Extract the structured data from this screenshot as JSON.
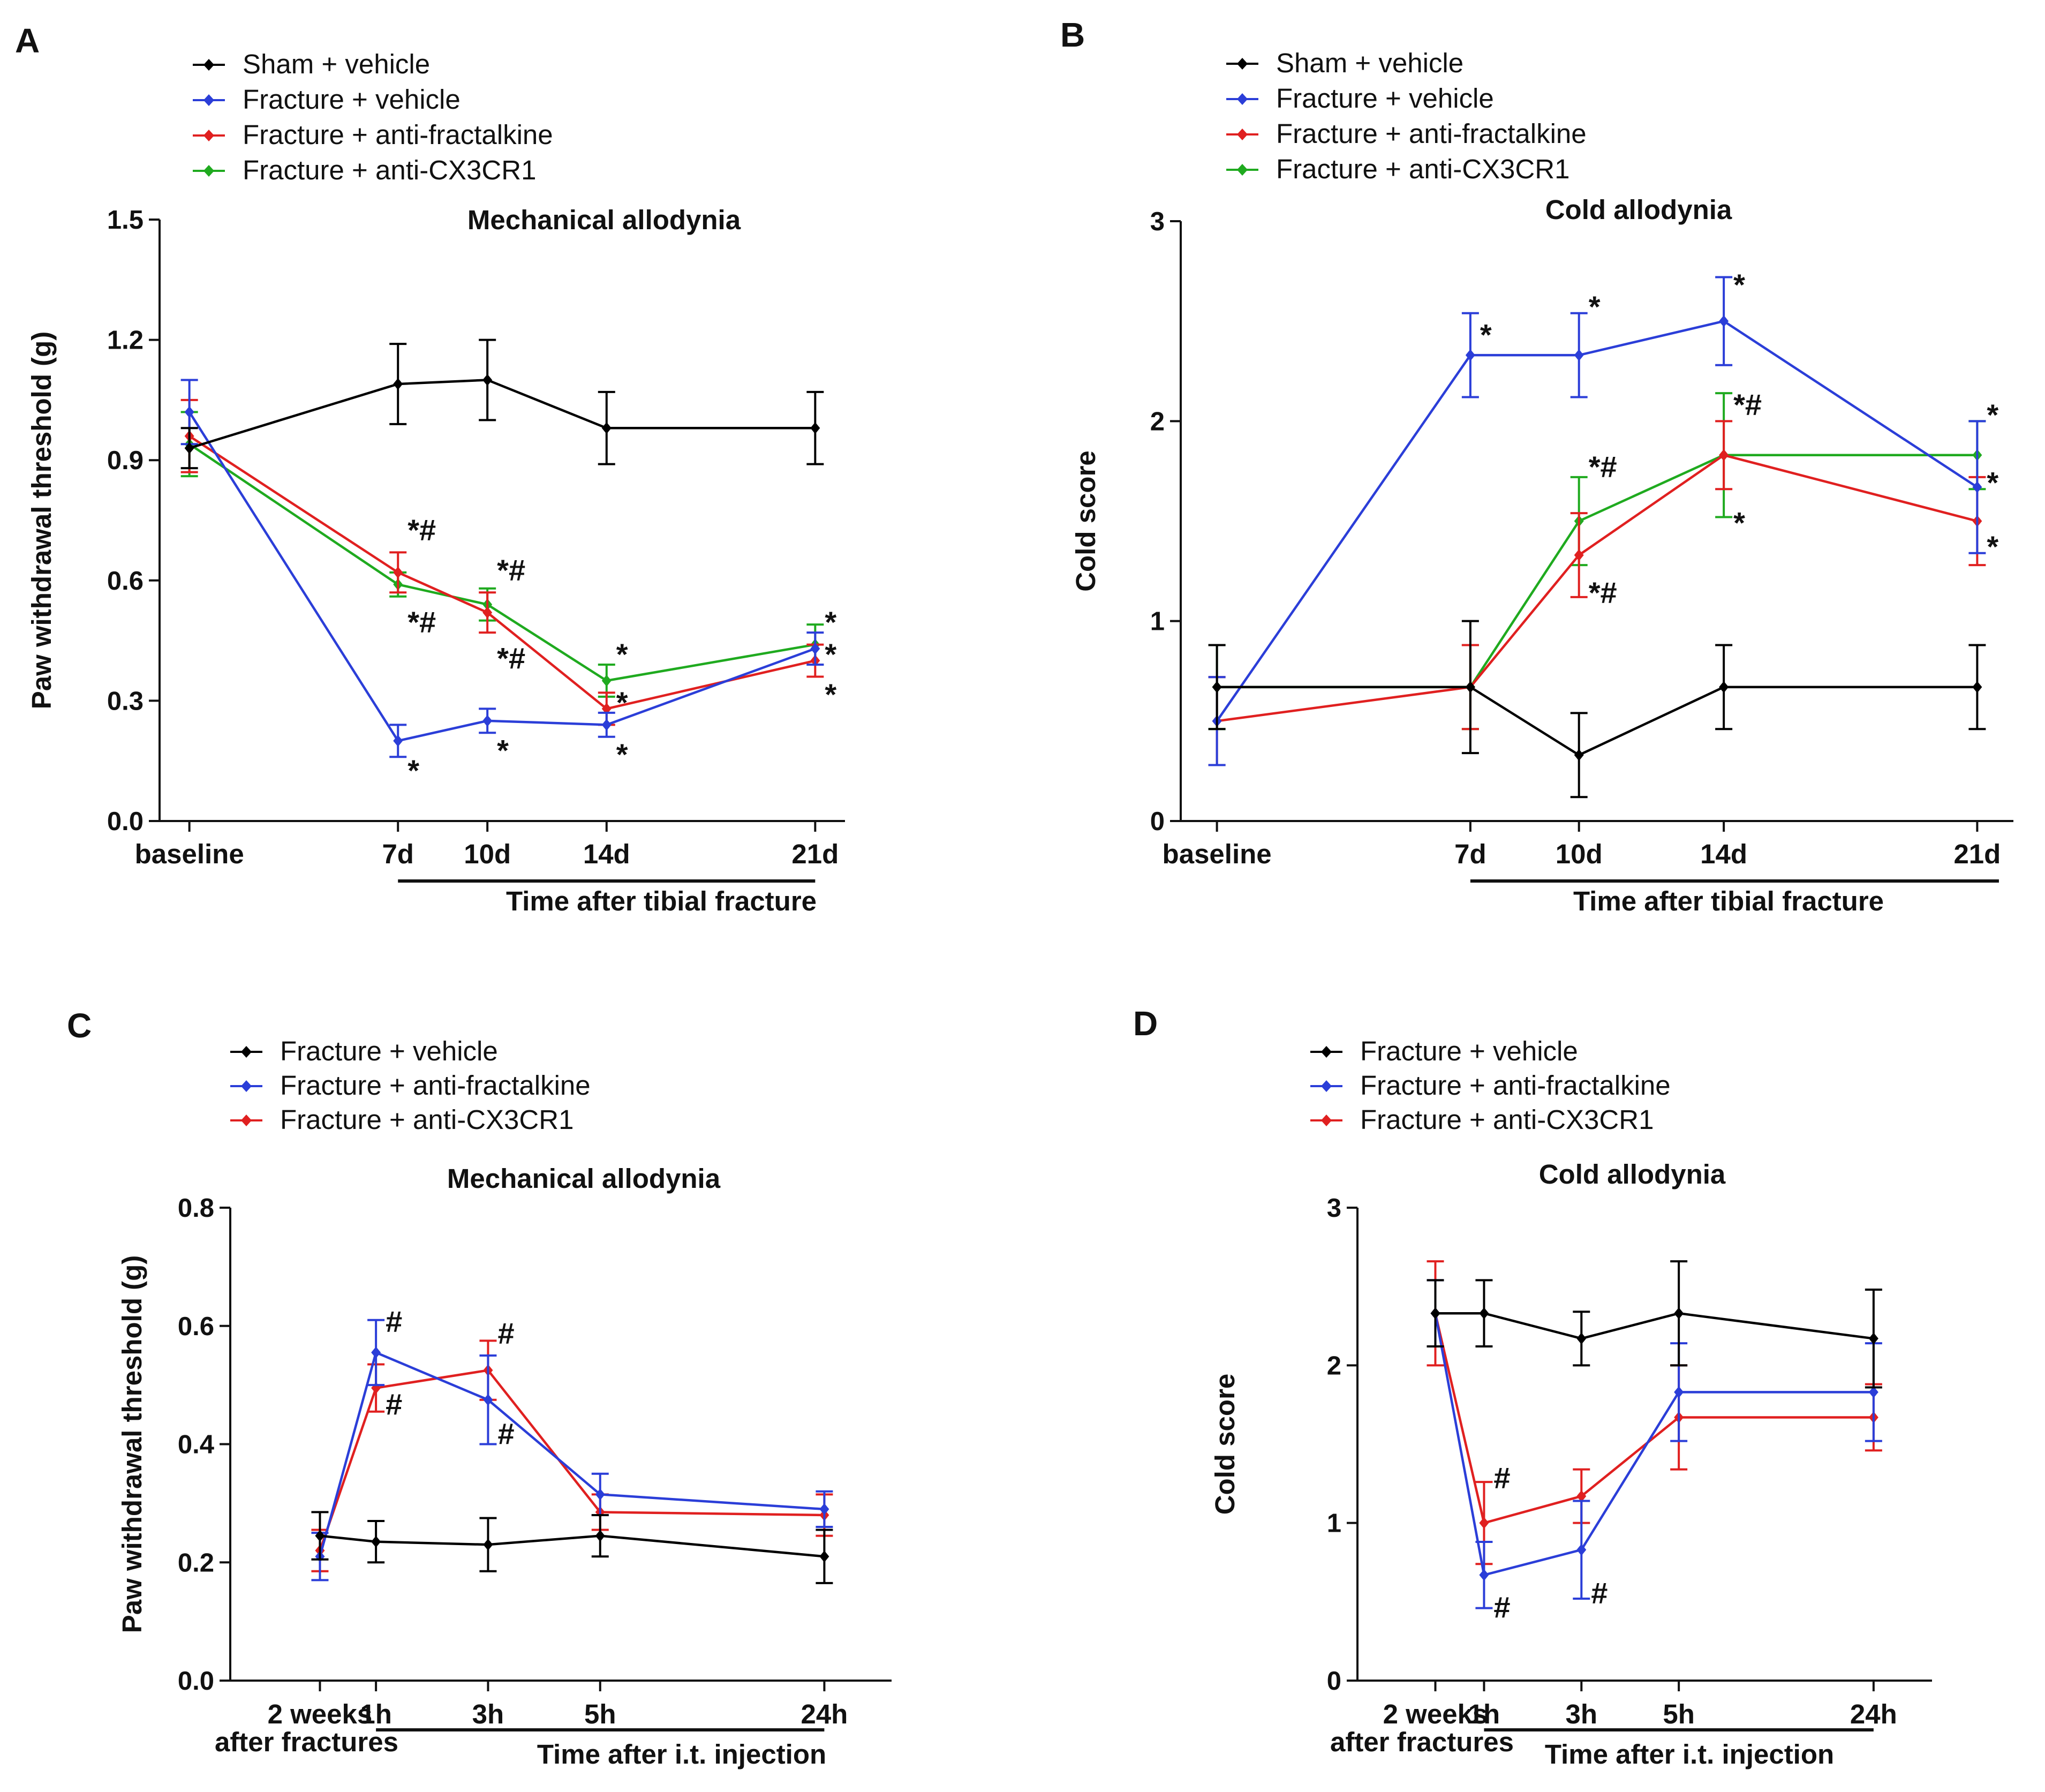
{
  "figure": {
    "panel_count": 4
  },
  "chart_data": [
    {
      "panel_letter": "A",
      "type": "line",
      "title": "Mechanical allodynia",
      "ylabel": "Paw withdrawal threshold (g)",
      "xlabel": "Time after tibial fracture",
      "ylim": [
        0,
        1.5
      ],
      "yticks": [
        "0.0",
        "0.3",
        "0.6",
        "0.9",
        "1.2",
        "1.5"
      ],
      "ytick_values": [
        0,
        0.3,
        0.6,
        0.9,
        1.2,
        1.5
      ],
      "categories": [
        "baseline",
        "7d",
        "10d",
        "14d",
        "21d"
      ],
      "x": [
        0,
        7,
        10,
        14,
        21
      ],
      "x_domain": [
        -1,
        22
      ],
      "xlabel_line_span": [
        7,
        21
      ],
      "legend": [
        "Sham + vehicle",
        "Fracture + vehicle",
        "Fracture + anti-fractalkine",
        "Fracture + anti-CX3CR1"
      ],
      "series": [
        {
          "name": "Sham + vehicle",
          "color": "#000000",
          "values": [
            0.93,
            1.09,
            1.1,
            0.98,
            0.98
          ],
          "errors": [
            0.05,
            0.1,
            0.1,
            0.09,
            0.09
          ]
        },
        {
          "name": "Fracture + vehicle",
          "color": "#2b3ed8",
          "values": [
            1.02,
            0.2,
            0.25,
            0.24,
            0.43
          ],
          "errors": [
            0.08,
            0.04,
            0.03,
            0.03,
            0.04
          ]
        },
        {
          "name": "Fracture + anti-fractalkine",
          "color": "#e02020",
          "values": [
            0.96,
            0.62,
            0.52,
            0.28,
            0.4
          ],
          "errors": [
            0.09,
            0.05,
            0.05,
            0.04,
            0.04
          ]
        },
        {
          "name": "Fracture + anti-CX3CR1",
          "color": "#1faa1f",
          "values": [
            0.94,
            0.59,
            0.54,
            0.35,
            0.44
          ],
          "errors": [
            0.08,
            0.03,
            0.04,
            0.04,
            0.05
          ]
        }
      ],
      "annotations": [
        {
          "text": "*#",
          "x": 7,
          "y": 0.7
        },
        {
          "text": "*#",
          "x": 7,
          "y": 0.47
        },
        {
          "text": "*",
          "x": 7,
          "y": 0.1
        },
        {
          "text": "*#",
          "x": 10,
          "y": 0.6
        },
        {
          "text": "*#",
          "x": 10,
          "y": 0.38
        },
        {
          "text": "*",
          "x": 10,
          "y": 0.15
        },
        {
          "text": "*",
          "x": 14,
          "y": 0.39
        },
        {
          "text": "*",
          "x": 14,
          "y": 0.27
        },
        {
          "text": "*",
          "x": 14,
          "y": 0.14
        },
        {
          "text": "*",
          "x": 21,
          "y": 0.47
        },
        {
          "text": "*",
          "x": 21,
          "y": 0.39
        },
        {
          "text": "*",
          "x": 21,
          "y": 0.29
        }
      ]
    },
    {
      "panel_letter": "B",
      "type": "line",
      "title": "Cold allodynia",
      "ylabel": "Cold score",
      "xlabel": "Time after tibial fracture",
      "ylim": [
        0,
        3
      ],
      "yticks": [
        "0",
        "1",
        "2",
        "3"
      ],
      "ytick_values": [
        0,
        1,
        2,
        3
      ],
      "categories": [
        "baseline",
        "7d",
        "10d",
        "14d",
        "21d"
      ],
      "x": [
        0,
        7,
        10,
        14,
        21
      ],
      "x_domain": [
        -1,
        22
      ],
      "xlabel_line_span": [
        7,
        21.6
      ],
      "legend": [
        "Sham + vehicle",
        "Fracture + vehicle",
        "Fracture + anti-fractalkine",
        "Fracture + anti-CX3CR1"
      ],
      "series": [
        {
          "name": "Sham + vehicle",
          "color": "#000000",
          "values": [
            0.67,
            0.67,
            0.33,
            0.67,
            0.67
          ],
          "errors": [
            0.21,
            0.33,
            0.21,
            0.21,
            0.21
          ]
        },
        {
          "name": "Fracture + vehicle",
          "color": "#2b3ed8",
          "values": [
            0.5,
            2.33,
            2.33,
            2.5,
            1.67
          ],
          "errors": [
            0.22,
            0.21,
            0.21,
            0.22,
            0.33
          ]
        },
        {
          "name": "Fracture + anti-fractalkine",
          "color": "#e02020",
          "values": [
            0.5,
            0.67,
            1.33,
            1.83,
            1.5
          ],
          "errors": [
            0.22,
            0.21,
            0.21,
            0.17,
            0.22
          ]
        },
        {
          "name": "Fracture + anti-CX3CR1",
          "color": "#1faa1f",
          "values": [
            0.67,
            0.67,
            1.5,
            1.83,
            1.83
          ],
          "errors": [
            0.21,
            0.21,
            0.22,
            0.31,
            0.17
          ]
        }
      ],
      "annotations": [
        {
          "text": "*",
          "x": 7,
          "y": 2.38
        },
        {
          "text": "*",
          "x": 10,
          "y": 2.52
        },
        {
          "text": "*",
          "x": 14,
          "y": 2.63
        },
        {
          "text": "*#",
          "x": 10,
          "y": 1.72
        },
        {
          "text": "*#",
          "x": 10,
          "y": 1.09
        },
        {
          "text": "*#",
          "x": 14,
          "y": 2.03
        },
        {
          "text": "*",
          "x": 14,
          "y": 1.44
        },
        {
          "text": "*",
          "x": 21,
          "y": 1.98
        },
        {
          "text": "*",
          "x": 21,
          "y": 1.64
        },
        {
          "text": "*",
          "x": 21,
          "y": 1.32
        }
      ]
    },
    {
      "panel_letter": "C",
      "type": "line",
      "title": "Mechanical allodynia",
      "ylabel": "Paw withdrawal threshold (g)",
      "xlabel": "Time after i.t. injection",
      "ylim": [
        0,
        0.8
      ],
      "yticks": [
        "0.0",
        "0.2",
        "0.4",
        "0.6",
        "0.8"
      ],
      "ytick_values": [
        0,
        0.2,
        0.4,
        0.6,
        0.8
      ],
      "categories": [
        "2 weeks",
        "1h",
        "3h",
        "5h",
        "24h"
      ],
      "category_sublabels": [
        "after fractures",
        "",
        "",
        "",
        ""
      ],
      "x": [
        0,
        1,
        3,
        5,
        9
      ],
      "x_domain": [
        -1.6,
        10.2
      ],
      "xlabel_line_span": [
        1,
        9
      ],
      "legend": [
        "Fracture + vehicle",
        "Fracture + anti-fractalkine",
        "Fracture + anti-CX3CR1"
      ],
      "series": [
        {
          "name": "Fracture + vehicle",
          "color": "#000000",
          "values": [
            0.245,
            0.235,
            0.23,
            0.245,
            0.21
          ],
          "errors": [
            0.04,
            0.035,
            0.045,
            0.035,
            0.045
          ]
        },
        {
          "name": "Fracture + anti-fractalkine",
          "color": "#2b3ed8",
          "values": [
            0.21,
            0.555,
            0.475,
            0.315,
            0.29
          ],
          "errors": [
            0.04,
            0.055,
            0.075,
            0.035,
            0.03
          ]
        },
        {
          "name": "Fracture + anti-CX3CR1",
          "color": "#e02020",
          "values": [
            0.22,
            0.495,
            0.525,
            0.285,
            0.28
          ],
          "errors": [
            0.035,
            0.04,
            0.05,
            0.03,
            0.035
          ]
        }
      ],
      "annotations": [
        {
          "text": "#",
          "x": 1,
          "y": 0.59
        },
        {
          "text": "#",
          "x": 1,
          "y": 0.45
        },
        {
          "text": "#",
          "x": 3,
          "y": 0.57
        },
        {
          "text": "#",
          "x": 3,
          "y": 0.4
        }
      ]
    },
    {
      "panel_letter": "D",
      "type": "line",
      "title": "Cold allodynia",
      "ylabel": "Cold score",
      "xlabel": "Time after i.t. injection",
      "ylim": [
        0,
        3
      ],
      "yticks": [
        "0",
        "1",
        "2",
        "3"
      ],
      "ytick_values": [
        0,
        1,
        2,
        3
      ],
      "categories": [
        "2 weeks",
        "1h",
        "3h",
        "5h",
        "24h"
      ],
      "category_sublabels": [
        "after fractures",
        "",
        "",
        "",
        ""
      ],
      "x": [
        0,
        1,
        3,
        5,
        9
      ],
      "x_domain": [
        -1.6,
        10.2
      ],
      "xlabel_line_span": [
        1,
        9
      ],
      "legend": [
        "Fracture + vehicle",
        "Fracture + anti-fractalkine",
        "Fracture + anti-CX3CR1"
      ],
      "series": [
        {
          "name": "Fracture + vehicle",
          "color": "#000000",
          "values": [
            2.33,
            2.33,
            2.17,
            2.33,
            2.17
          ],
          "errors": [
            0.21,
            0.21,
            0.17,
            0.33,
            0.31
          ]
        },
        {
          "name": "Fracture + anti-fractalkine",
          "color": "#2b3ed8",
          "values": [
            2.33,
            0.67,
            0.83,
            1.83,
            1.83
          ],
          "errors": [
            0.21,
            0.21,
            0.31,
            0.31,
            0.31
          ]
        },
        {
          "name": "Fracture + anti-CX3CR1",
          "color": "#e02020",
          "values": [
            2.33,
            1.0,
            1.17,
            1.67,
            1.67
          ],
          "errors": [
            0.33,
            0.26,
            0.17,
            0.33,
            0.21
          ]
        }
      ],
      "annotations": [
        {
          "text": "#",
          "x": 1,
          "y": 1.22
        },
        {
          "text": "#",
          "x": 1,
          "y": 0.4
        },
        {
          "text": "#",
          "x": 3,
          "y": 0.49
        }
      ]
    }
  ]
}
